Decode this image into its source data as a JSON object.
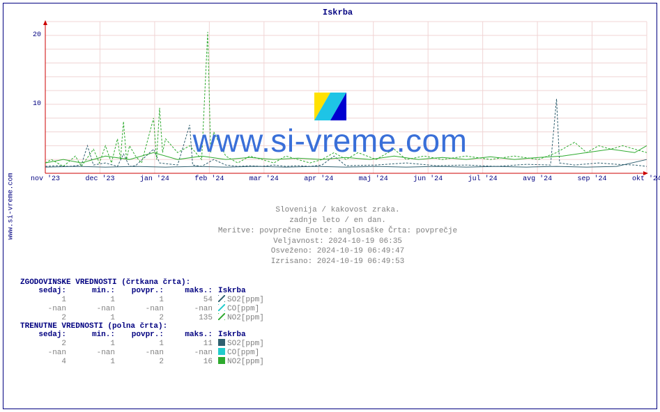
{
  "title": "Iskrba",
  "sidebar_label": "www.si-vreme.com",
  "watermark_text": "www.si-vreme.com",
  "chart": {
    "type": "line",
    "background_color": "#ffffff",
    "grid_color": "#f0d4d4",
    "axis_color": "#cc0000",
    "ylim": [
      0,
      22
    ],
    "yticks": [
      10,
      20
    ],
    "xlim_months": [
      "nov '23",
      "dec '23",
      "jan '24",
      "feb '24",
      "mar '24",
      "apr '24",
      "maj '24",
      "jun '24",
      "jul '24",
      "avg '24",
      "sep '24",
      "okt '24"
    ],
    "series": [
      {
        "name": "SO2_hist",
        "color": "#2f5f6f",
        "dash": "3,2",
        "width": 1,
        "points": [
          [
            0,
            1.0
          ],
          [
            2,
            1.1
          ],
          [
            4,
            1.0
          ],
          [
            6,
            1.2
          ],
          [
            7,
            4.0
          ],
          [
            8,
            1.2
          ],
          [
            10,
            1.5
          ],
          [
            12,
            1.0
          ],
          [
            13,
            2.8
          ],
          [
            14,
            1.0
          ],
          [
            15,
            1.1
          ],
          [
            18,
            3.5
          ],
          [
            19,
            1.5
          ],
          [
            22,
            1.2
          ],
          [
            24,
            7.0
          ],
          [
            24.5,
            1.2
          ],
          [
            26,
            1.0
          ],
          [
            27,
            1.5
          ],
          [
            28,
            2.0
          ],
          [
            30,
            1.2
          ],
          [
            32,
            1.0
          ],
          [
            34,
            1.1
          ],
          [
            36,
            1.0
          ],
          [
            38,
            1.2
          ],
          [
            40,
            1.0
          ],
          [
            42,
            1.1
          ],
          [
            44,
            1.0
          ],
          [
            46,
            1.2
          ],
          [
            48,
            2.5
          ],
          [
            50,
            1.1
          ],
          [
            55,
            1.2
          ],
          [
            60,
            1.5
          ],
          [
            65,
            1.1
          ],
          [
            70,
            1.2
          ],
          [
            75,
            1.0
          ],
          [
            80,
            1.3
          ],
          [
            84,
            1.2
          ],
          [
            85,
            10.8
          ],
          [
            85.5,
            1.5
          ],
          [
            88,
            1.2
          ],
          [
            92,
            1.5
          ],
          [
            95,
            1.3
          ],
          [
            98,
            1.2
          ],
          [
            100,
            1.0
          ]
        ]
      },
      {
        "name": "NO2_hist",
        "color": "#2eaa2e",
        "dash": "3,2",
        "width": 1,
        "points": [
          [
            0,
            1.5
          ],
          [
            1,
            2.0
          ],
          [
            3,
            1.0
          ],
          [
            5,
            2.5
          ],
          [
            6,
            1.0
          ],
          [
            8,
            3.5
          ],
          [
            9,
            1.5
          ],
          [
            10,
            4.0
          ],
          [
            11,
            1.5
          ],
          [
            12,
            5.0
          ],
          [
            12.5,
            2.0
          ],
          [
            13,
            7.5
          ],
          [
            13.5,
            2.0
          ],
          [
            14,
            4.0
          ],
          [
            15,
            2.5
          ],
          [
            16,
            1.5
          ],
          [
            18,
            8.0
          ],
          [
            18.5,
            2.0
          ],
          [
            19,
            9.5
          ],
          [
            19.5,
            3.0
          ],
          [
            20,
            5.0
          ],
          [
            22,
            3.0
          ],
          [
            24,
            4.0
          ],
          [
            26,
            2.0
          ],
          [
            27,
            20.5
          ],
          [
            27.5,
            3.0
          ],
          [
            28,
            6.0
          ],
          [
            30,
            2.5
          ],
          [
            32,
            1.5
          ],
          [
            34,
            2.5
          ],
          [
            36,
            2.0
          ],
          [
            38,
            1.5
          ],
          [
            40,
            2.5
          ],
          [
            42,
            2.0
          ],
          [
            44,
            1.5
          ],
          [
            46,
            2.0
          ],
          [
            48,
            3.0
          ],
          [
            50,
            2.0
          ],
          [
            52,
            3.0
          ],
          [
            55,
            2.0
          ],
          [
            58,
            3.5
          ],
          [
            60,
            2.0
          ],
          [
            63,
            2.5
          ],
          [
            66,
            2.0
          ],
          [
            70,
            2.5
          ],
          [
            74,
            2.0
          ],
          [
            78,
            2.5
          ],
          [
            82,
            2.0
          ],
          [
            85,
            3.0
          ],
          [
            88,
            4.5
          ],
          [
            90,
            3.0
          ],
          [
            92,
            4.0
          ],
          [
            94,
            3.5
          ],
          [
            96,
            4.0
          ],
          [
            98,
            3.5
          ],
          [
            100,
            3.0
          ]
        ]
      },
      {
        "name": "SO2_curr",
        "color": "#2f5f6f",
        "dash": "",
        "width": 1,
        "points": [
          [
            0,
            0.9
          ],
          [
            5,
            1.0
          ],
          [
            10,
            0.9
          ],
          [
            15,
            1.0
          ],
          [
            20,
            0.9
          ],
          [
            25,
            1.0
          ],
          [
            30,
            0.9
          ],
          [
            35,
            1.0
          ],
          [
            40,
            0.9
          ],
          [
            45,
            1.0
          ],
          [
            50,
            0.9
          ],
          [
            55,
            1.0
          ],
          [
            60,
            0.9
          ],
          [
            65,
            1.0
          ],
          [
            70,
            0.9
          ],
          [
            75,
            1.0
          ],
          [
            80,
            0.9
          ],
          [
            85,
            1.0
          ],
          [
            90,
            0.9
          ],
          [
            95,
            1.0
          ],
          [
            100,
            2.0
          ]
        ]
      },
      {
        "name": "NO2_curr",
        "color": "#2eaa2e",
        "dash": "",
        "width": 1,
        "points": [
          [
            0,
            1.5
          ],
          [
            3,
            2.0
          ],
          [
            6,
            1.5
          ],
          [
            10,
            2.5
          ],
          [
            14,
            2.0
          ],
          [
            18,
            3.0
          ],
          [
            22,
            2.0
          ],
          [
            26,
            2.5
          ],
          [
            30,
            2.0
          ],
          [
            34,
            2.3
          ],
          [
            38,
            2.0
          ],
          [
            42,
            2.2
          ],
          [
            46,
            2.0
          ],
          [
            50,
            2.3
          ],
          [
            54,
            2.0
          ],
          [
            58,
            2.5
          ],
          [
            62,
            2.0
          ],
          [
            66,
            2.3
          ],
          [
            70,
            2.0
          ],
          [
            74,
            2.4
          ],
          [
            78,
            2.0
          ],
          [
            82,
            2.3
          ],
          [
            86,
            2.5
          ],
          [
            90,
            3.0
          ],
          [
            94,
            3.5
          ],
          [
            98,
            3.0
          ],
          [
            100,
            4.0
          ]
        ]
      }
    ]
  },
  "caption": {
    "line1": "Slovenija / kakovost zraka.",
    "line2": "zadnje leto / en dan.",
    "line3": "Meritve: povprečne  Enote: anglosaške  Črta: povprečje",
    "line4": "Veljavnost: 2024-10-19 06:35",
    "line5": "Osveženo: 2024-10-19 06:49:47",
    "line6": "Izrisano: 2024-10-19 06:49:53"
  },
  "tables": {
    "hist_header": "ZGODOVINSKE VREDNOSTI (črtkana črta):",
    "curr_header": "TRENUTNE VREDNOSTI (polna črta):",
    "columns": [
      "sedaj:",
      "min.:",
      "povpr.:",
      "maks.:"
    ],
    "station": "Iskrba",
    "hist_rows": [
      {
        "sedaj": "1",
        "min": "1",
        "povpr": "1",
        "maks": "54",
        "swatch_fg": "#2f5f6f",
        "swatch_bg": "#2f5f6f",
        "hatched": true,
        "label": "SO2[ppm]"
      },
      {
        "sedaj": "-nan",
        "min": "-nan",
        "povpr": "-nan",
        "maks": "-nan",
        "swatch_fg": "#22cccc",
        "swatch_bg": "#22cccc",
        "hatched": true,
        "label": "CO[ppm]"
      },
      {
        "sedaj": "2",
        "min": "1",
        "povpr": "2",
        "maks": "135",
        "swatch_fg": "#2eaa2e",
        "swatch_bg": "#2eaa2e",
        "hatched": true,
        "label": "NO2[ppm]"
      }
    ],
    "curr_rows": [
      {
        "sedaj": "2",
        "min": "1",
        "povpr": "1",
        "maks": "11",
        "swatch_fg": "#2f5f6f",
        "swatch_bg": "#2f5f6f",
        "hatched": false,
        "label": "SO2[ppm]"
      },
      {
        "sedaj": "-nan",
        "min": "-nan",
        "povpr": "-nan",
        "maks": "-nan",
        "swatch_fg": "#22cccc",
        "swatch_bg": "#22cccc",
        "hatched": false,
        "label": "CO[ppm]"
      },
      {
        "sedaj": "4",
        "min": "1",
        "povpr": "2",
        "maks": "16",
        "swatch_fg": "#2eaa2e",
        "swatch_bg": "#2eaa2e",
        "hatched": false,
        "label": "NO2[ppm]"
      }
    ]
  }
}
